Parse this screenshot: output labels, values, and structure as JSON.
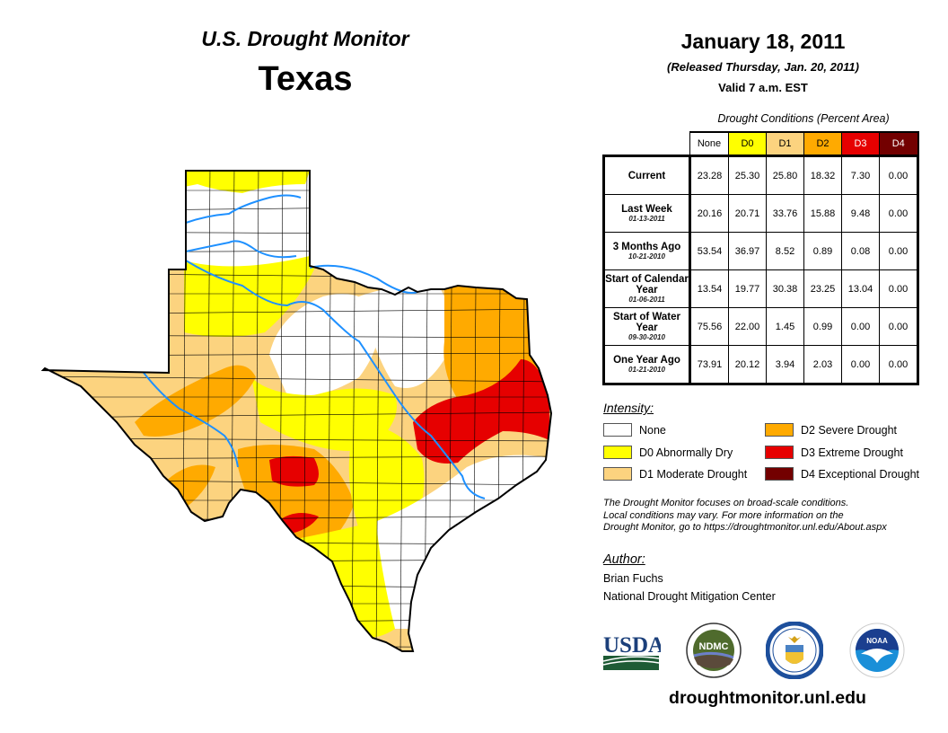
{
  "header": {
    "product": "U.S. Drought Monitor",
    "region": "Texas",
    "date": "January 18, 2011",
    "released": "(Released Thursday, Jan. 20, 2011)",
    "valid": "Valid 7 a.m. EST"
  },
  "table": {
    "caption": "Drought Conditions (Percent Area)",
    "columns": [
      {
        "label": "None",
        "bg": "#ffffff",
        "fg": "#000000"
      },
      {
        "label": "D0",
        "bg": "#ffff00",
        "fg": "#000000"
      },
      {
        "label": "D1",
        "bg": "#fcd37f",
        "fg": "#000000"
      },
      {
        "label": "D2",
        "bg": "#ffaa00",
        "fg": "#000000"
      },
      {
        "label": "D3",
        "bg": "#e60000",
        "fg": "#ffffff"
      },
      {
        "label": "D4",
        "bg": "#730000",
        "fg": "#ffffff"
      }
    ],
    "rows": [
      {
        "label": "Current",
        "sub": "",
        "values": [
          "23.28",
          "25.30",
          "25.80",
          "18.32",
          "7.30",
          "0.00"
        ]
      },
      {
        "label": "Last Week",
        "sub": "01-13-2011",
        "values": [
          "20.16",
          "20.71",
          "33.76",
          "15.88",
          "9.48",
          "0.00"
        ]
      },
      {
        "label": "3 Months Ago",
        "sub": "10-21-2010",
        "values": [
          "53.54",
          "36.97",
          "8.52",
          "0.89",
          "0.08",
          "0.00"
        ]
      },
      {
        "label": "Start of Calendar Year",
        "sub": "01-06-2011",
        "values": [
          "13.54",
          "19.77",
          "30.38",
          "23.25",
          "13.04",
          "0.00"
        ]
      },
      {
        "label": "Start of Water Year",
        "sub": "09-30-2010",
        "values": [
          "75.56",
          "22.00",
          "1.45",
          "0.99",
          "0.00",
          "0.00"
        ]
      },
      {
        "label": "One Year Ago",
        "sub": "01-21-2010",
        "values": [
          "73.91",
          "20.12",
          "3.94",
          "2.03",
          "0.00",
          "0.00"
        ]
      }
    ]
  },
  "legend": {
    "title": "Intensity:",
    "items": [
      {
        "label": "None",
        "color": "#ffffff"
      },
      {
        "label": "D0 Abnormally Dry",
        "color": "#ffff00"
      },
      {
        "label": "D1 Moderate Drought",
        "color": "#fcd37f"
      },
      {
        "label": "D2 Severe Drought",
        "color": "#ffaa00"
      },
      {
        "label": "D3 Extreme Drought",
        "color": "#e60000"
      },
      {
        "label": "D4 Exceptional Drought",
        "color": "#730000"
      }
    ]
  },
  "note": [
    "The Drought Monitor focuses on broad-scale conditions.",
    "Local conditions may vary. For more information on the",
    "Drought Monitor, go to https://droughtmonitor.unl.edu/About.aspx"
  ],
  "author": {
    "title": "Author:",
    "name": "Brian Fuchs",
    "org": "National Drought Mitigation Center"
  },
  "logos": {
    "usda": "USDA",
    "ndmc": "NDMC",
    "commerce": "Department of Commerce",
    "noaa": "NOAA"
  },
  "footer": {
    "url": "droughtmonitor.unl.edu"
  },
  "map": {
    "river_color": "#1e90ff",
    "outline_color": "#000000"
  }
}
